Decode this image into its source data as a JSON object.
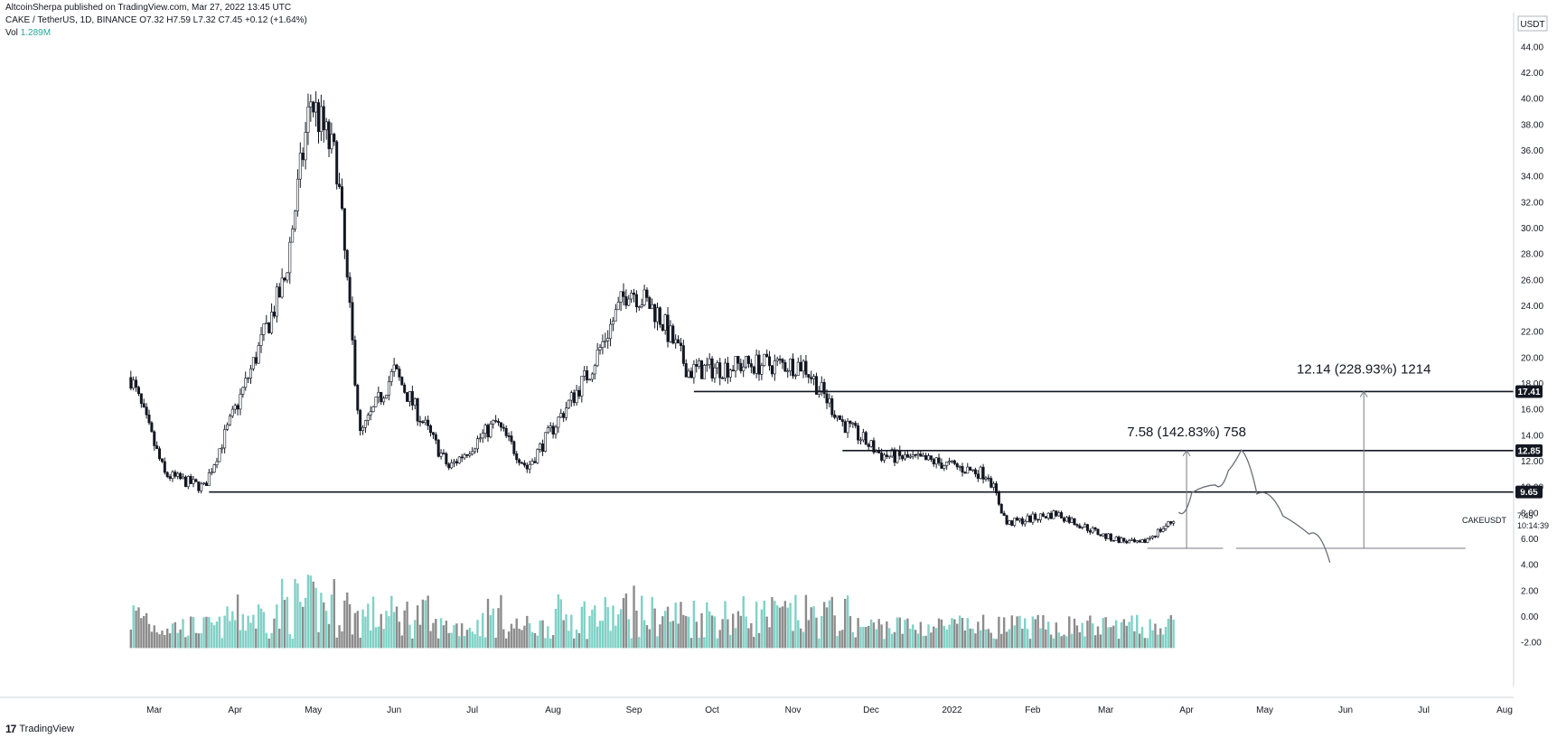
{
  "header": {
    "published": "AltcoinSherpa published on TradingView.com, Mar 27, 2022 13:45 UTC",
    "symbol_line": "CAKE / TetherUS, 1D, BINANCE  O7.32  H7.59  L7.32  C7.45  +0.12 (+1.64%)",
    "vol_label": "Vol",
    "vol_value": "1.289M"
  },
  "footer": {
    "logo": "17",
    "brand": "TradingView"
  },
  "colors": {
    "volume_up": "#7fd1c6",
    "volume_down": "#8c8c8c",
    "candle": "#131722",
    "badge": "#131722"
  },
  "chart_data": {
    "type": "candlestick",
    "y_axis": {
      "unit": "USDT",
      "range": [
        -3,
        45
      ],
      "ticks": [
        "44.00",
        "42.00",
        "40.00",
        "38.00",
        "36.00",
        "34.00",
        "32.00",
        "30.00",
        "28.00",
        "26.00",
        "24.00",
        "22.00",
        "20.00",
        "18.00",
        "16.00",
        "14.00",
        "12.00",
        "10.00",
        "8.00",
        "6.00",
        "4.00",
        "2.00",
        "0.00",
        "-2.00"
      ]
    },
    "x_axis": {
      "labels": [
        "Mar",
        "Apr",
        "May",
        "Jun",
        "Jul",
        "Aug",
        "Sep",
        "Oct",
        "Nov",
        "Dec",
        "2022",
        "Feb",
        "Mar",
        "Apr",
        "May",
        "Jun",
        "Jul",
        "Aug"
      ]
    },
    "price_path": [
      {
        "date": "2021-02-20",
        "close": 18.5
      },
      {
        "date": "2021-03-05",
        "close": 11.0
      },
      {
        "date": "2021-03-20",
        "close": 10.0
      },
      {
        "date": "2021-04-05",
        "close": 18.0
      },
      {
        "date": "2021-04-20",
        "close": 26.0
      },
      {
        "date": "2021-04-30",
        "close": 40.0
      },
      {
        "date": "2021-05-10",
        "close": 35.0
      },
      {
        "date": "2021-05-19",
        "close": 14.0
      },
      {
        "date": "2021-06-01",
        "close": 19.0
      },
      {
        "date": "2021-06-22",
        "close": 11.5
      },
      {
        "date": "2021-07-10",
        "close": 15.0
      },
      {
        "date": "2021-07-22",
        "close": 11.5
      },
      {
        "date": "2021-08-15",
        "close": 19.0
      },
      {
        "date": "2021-08-30",
        "close": 25.5
      },
      {
        "date": "2021-09-10",
        "close": 23.5
      },
      {
        "date": "2021-09-22",
        "close": 19.0
      },
      {
        "date": "2021-10-15",
        "close": 19.5
      },
      {
        "date": "2021-11-05",
        "close": 19.5
      },
      {
        "date": "2021-11-20",
        "close": 15.0
      },
      {
        "date": "2021-12-05",
        "close": 12.5
      },
      {
        "date": "2021-12-25",
        "close": 12.0
      },
      {
        "date": "2022-01-15",
        "close": 11.0
      },
      {
        "date": "2022-01-22",
        "close": 7.2
      },
      {
        "date": "2022-02-10",
        "close": 8.0
      },
      {
        "date": "2022-03-01",
        "close": 6.2
      },
      {
        "date": "2022-03-14",
        "close": 5.6
      },
      {
        "date": "2022-03-27",
        "close": 7.45
      }
    ],
    "levels": [
      {
        "value": 17.41,
        "label": "17.41"
      },
      {
        "value": 12.85,
        "label": "12.85"
      },
      {
        "value": 9.65,
        "label": "9.65"
      }
    ],
    "current_price": {
      "symbol": "CAKEUSDT",
      "price": "7.45",
      "countdown": "10:14:39"
    },
    "annotations": [
      {
        "text": "7.58 (142.83%) 758",
        "from": 5.3,
        "to": 12.85
      },
      {
        "text": "12.14 (228.93%) 1214",
        "from": 5.3,
        "to": 17.41
      }
    ],
    "projection_path": [
      {
        "date": "2022-03-29",
        "close": 8.1
      },
      {
        "date": "2022-04-03",
        "close": 9.6
      },
      {
        "date": "2022-04-12",
        "close": 10.2
      },
      {
        "date": "2022-04-17",
        "close": 11.3
      },
      {
        "date": "2022-04-22",
        "close": 12.9
      },
      {
        "date": "2022-04-28",
        "close": 9.5
      },
      {
        "date": "2022-05-08",
        "close": 7.8
      },
      {
        "date": "2022-05-18",
        "close": 6.4
      },
      {
        "date": "2022-05-26",
        "close": 4.2
      }
    ]
  }
}
